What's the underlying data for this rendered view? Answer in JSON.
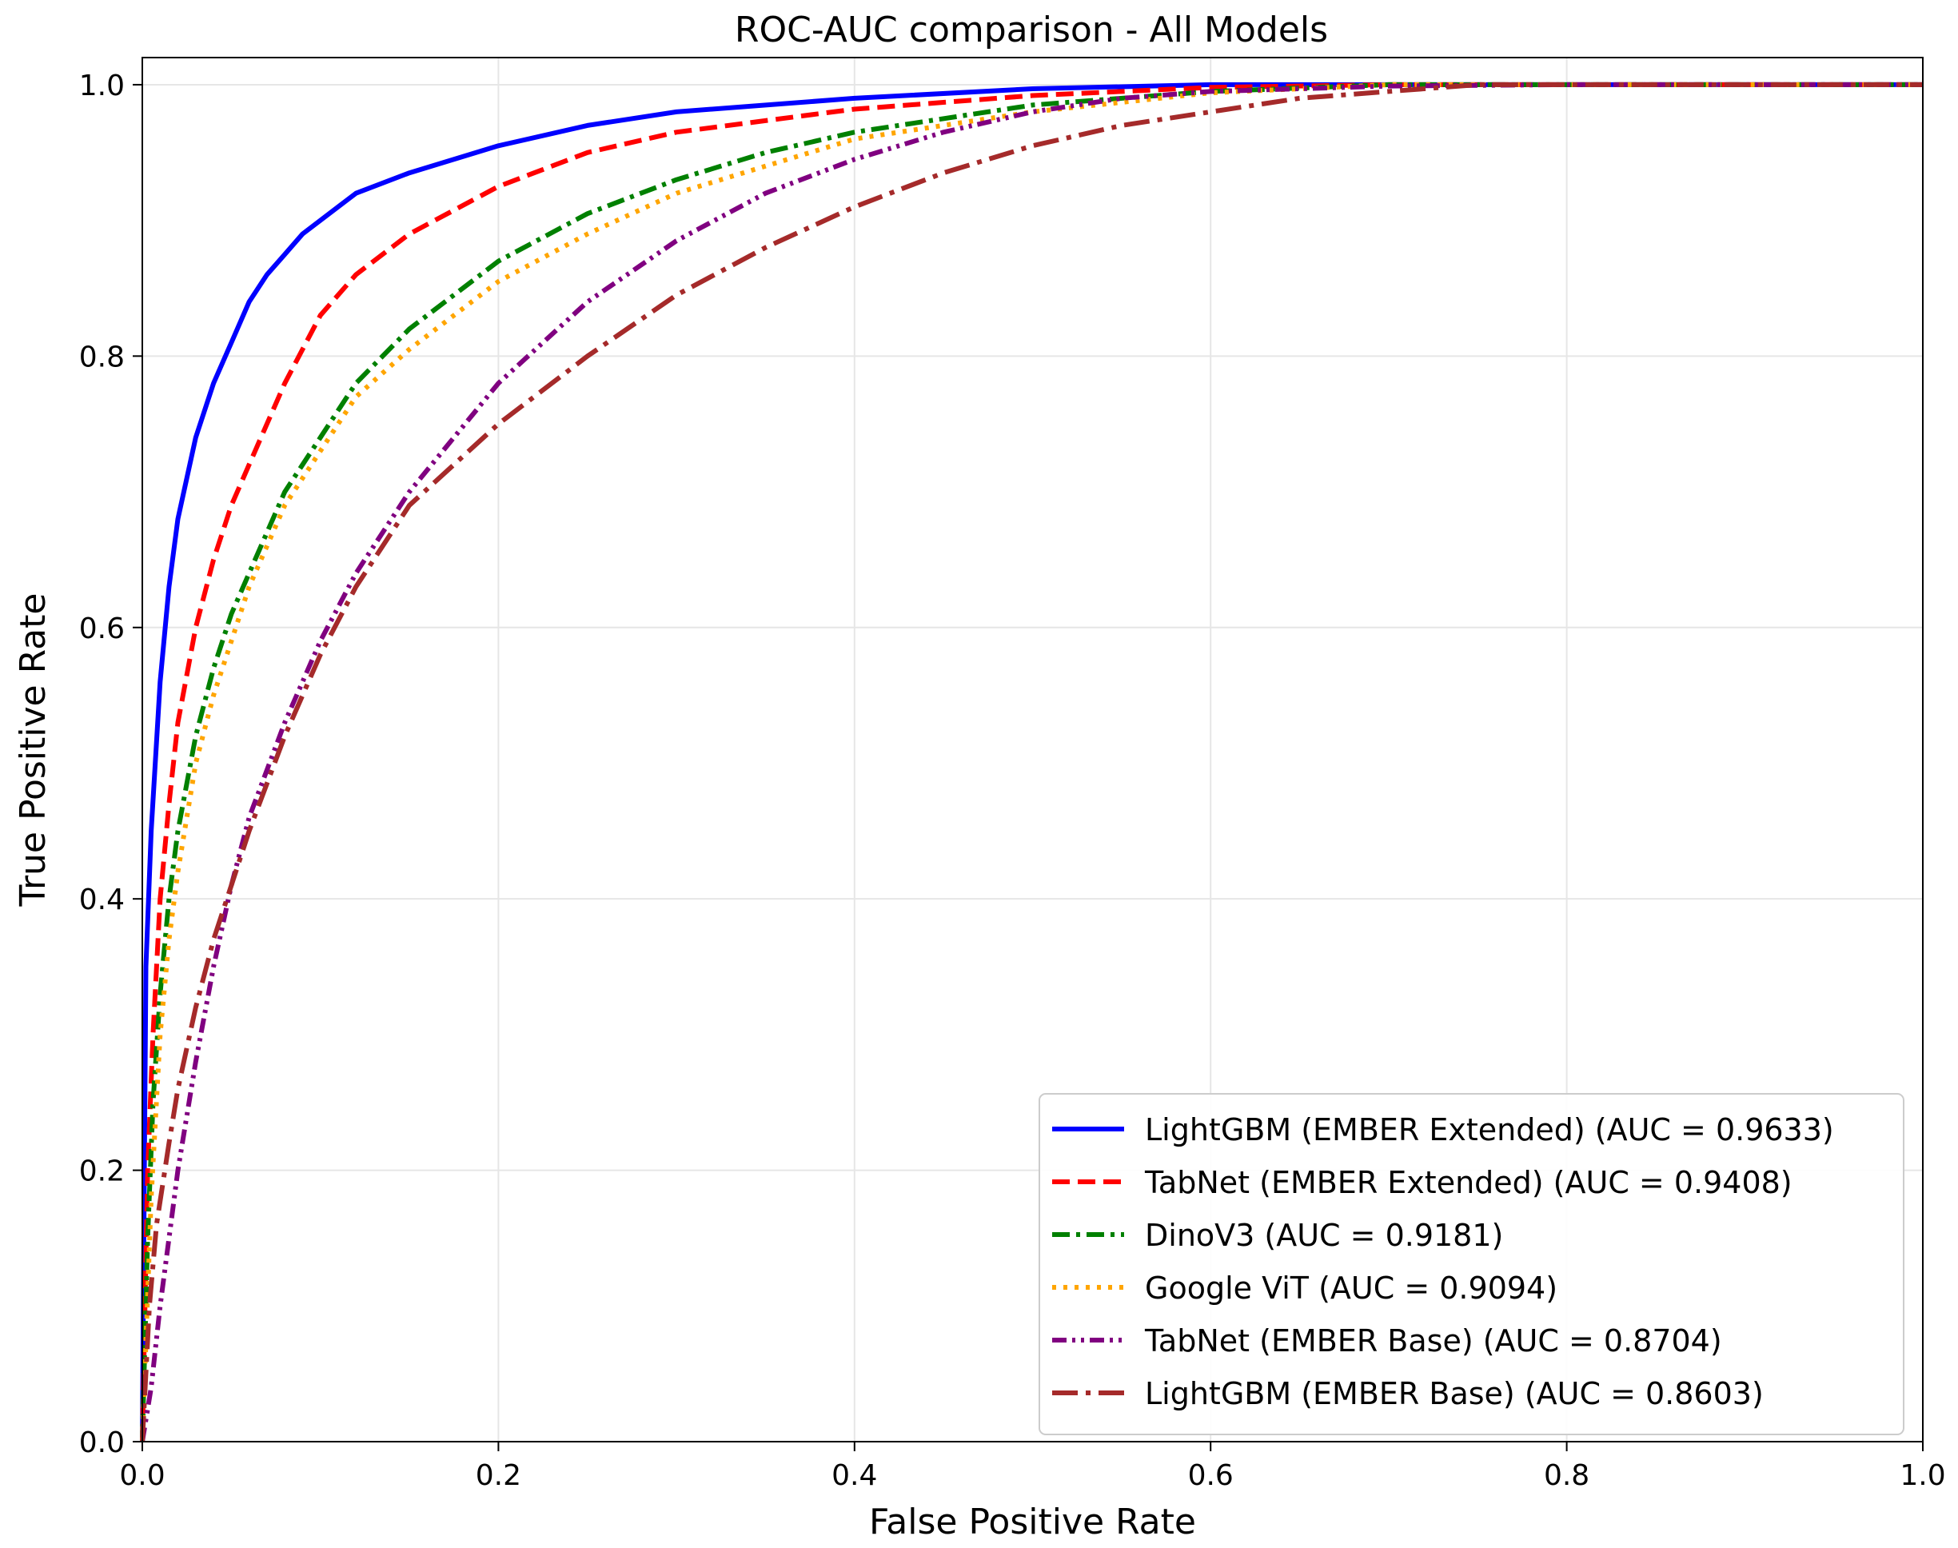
{
  "chart_data": {
    "type": "line",
    "title": "ROC-AUC comparison - All Models",
    "xlabel": "False Positive Rate",
    "ylabel": "True Positive Rate",
    "xlim": [
      0.0,
      1.0
    ],
    "ylim": [
      0.0,
      1.02
    ],
    "x_ticks": [
      "0.0",
      "0.2",
      "0.4",
      "0.6",
      "0.8",
      "1.0"
    ],
    "y_ticks": [
      "0.0",
      "0.2",
      "0.4",
      "0.6",
      "0.8",
      "1.0"
    ],
    "grid": true,
    "legend_position": "lower-right",
    "series": [
      {
        "name": "LightGBM (EMBER Extended) (AUC = 0.9633)",
        "color": "#0000ff",
        "style": "solid",
        "x": [
          0,
          0.002,
          0.005,
          0.01,
          0.015,
          0.02,
          0.03,
          0.04,
          0.05,
          0.06,
          0.07,
          0.08,
          0.09,
          0.1,
          0.12,
          0.15,
          0.2,
          0.25,
          0.3,
          0.4,
          0.5,
          0.6,
          1.0
        ],
        "y": [
          0,
          0.35,
          0.45,
          0.56,
          0.63,
          0.68,
          0.74,
          0.78,
          0.81,
          0.84,
          0.86,
          0.875,
          0.89,
          0.9,
          0.92,
          0.935,
          0.955,
          0.97,
          0.98,
          0.99,
          0.997,
          1.0,
          1.0
        ]
      },
      {
        "name": "TabNet (EMBER Extended) (AUC = 0.9408)",
        "color": "#ff0000",
        "style": "dashed",
        "x": [
          0,
          0.003,
          0.006,
          0.01,
          0.015,
          0.02,
          0.03,
          0.04,
          0.05,
          0.06,
          0.07,
          0.08,
          0.1,
          0.12,
          0.15,
          0.2,
          0.25,
          0.3,
          0.4,
          0.5,
          0.6,
          0.7,
          1.0
        ],
        "y": [
          0,
          0.2,
          0.3,
          0.4,
          0.47,
          0.53,
          0.6,
          0.65,
          0.69,
          0.72,
          0.75,
          0.78,
          0.83,
          0.86,
          0.89,
          0.925,
          0.95,
          0.965,
          0.982,
          0.992,
          0.998,
          1.0,
          1.0
        ]
      },
      {
        "name": "DinoV3 (AUC = 0.9181)",
        "color": "#008000",
        "style": "dashdot",
        "x": [
          0,
          0.003,
          0.006,
          0.01,
          0.015,
          0.02,
          0.03,
          0.04,
          0.05,
          0.06,
          0.08,
          0.1,
          0.12,
          0.15,
          0.2,
          0.25,
          0.3,
          0.35,
          0.4,
          0.5,
          0.6,
          0.7,
          1.0
        ],
        "y": [
          0,
          0.15,
          0.25,
          0.33,
          0.4,
          0.45,
          0.52,
          0.57,
          0.61,
          0.64,
          0.7,
          0.74,
          0.78,
          0.82,
          0.87,
          0.905,
          0.93,
          0.95,
          0.965,
          0.985,
          0.995,
          1.0,
          1.0
        ]
      },
      {
        "name": "Google ViT (AUC = 0.9094)",
        "color": "#ffa500",
        "style": "dotted",
        "x": [
          0,
          0.005,
          0.01,
          0.015,
          0.02,
          0.03,
          0.04,
          0.05,
          0.06,
          0.08,
          0.1,
          0.12,
          0.15,
          0.2,
          0.25,
          0.3,
          0.35,
          0.4,
          0.5,
          0.6,
          0.7,
          1.0
        ],
        "y": [
          0,
          0.18,
          0.3,
          0.37,
          0.42,
          0.5,
          0.55,
          0.59,
          0.63,
          0.69,
          0.73,
          0.77,
          0.805,
          0.855,
          0.89,
          0.92,
          0.94,
          0.96,
          0.98,
          0.994,
          1.0,
          1.0
        ]
      },
      {
        "name": "TabNet (EMBER Base) (AUC = 0.8704)",
        "color": "#800080",
        "style": "dashdotdot",
        "x": [
          0,
          0.005,
          0.01,
          0.02,
          0.03,
          0.04,
          0.05,
          0.06,
          0.08,
          0.1,
          0.12,
          0.15,
          0.2,
          0.25,
          0.3,
          0.35,
          0.4,
          0.45,
          0.5,
          0.55,
          0.6,
          0.7,
          0.8,
          1.0
        ],
        "y": [
          0,
          0.04,
          0.1,
          0.2,
          0.28,
          0.35,
          0.41,
          0.46,
          0.53,
          0.59,
          0.64,
          0.7,
          0.78,
          0.84,
          0.885,
          0.92,
          0.945,
          0.965,
          0.98,
          0.99,
          0.995,
          0.999,
          1.0,
          1.0
        ]
      },
      {
        "name": "LightGBM (EMBER Base) (AUC = 0.8603)",
        "color": "#a52a2a",
        "style": "dashdot-long",
        "x": [
          0,
          0.004,
          0.008,
          0.015,
          0.02,
          0.03,
          0.04,
          0.05,
          0.06,
          0.08,
          0.1,
          0.12,
          0.15,
          0.2,
          0.25,
          0.3,
          0.35,
          0.4,
          0.45,
          0.5,
          0.55,
          0.6,
          0.65,
          0.7,
          0.75,
          1.0
        ],
        "y": [
          0,
          0.1,
          0.16,
          0.22,
          0.26,
          0.32,
          0.37,
          0.41,
          0.45,
          0.52,
          0.58,
          0.63,
          0.69,
          0.75,
          0.8,
          0.845,
          0.88,
          0.91,
          0.935,
          0.955,
          0.97,
          0.98,
          0.99,
          0.995,
          1.0,
          1.0
        ]
      }
    ]
  }
}
